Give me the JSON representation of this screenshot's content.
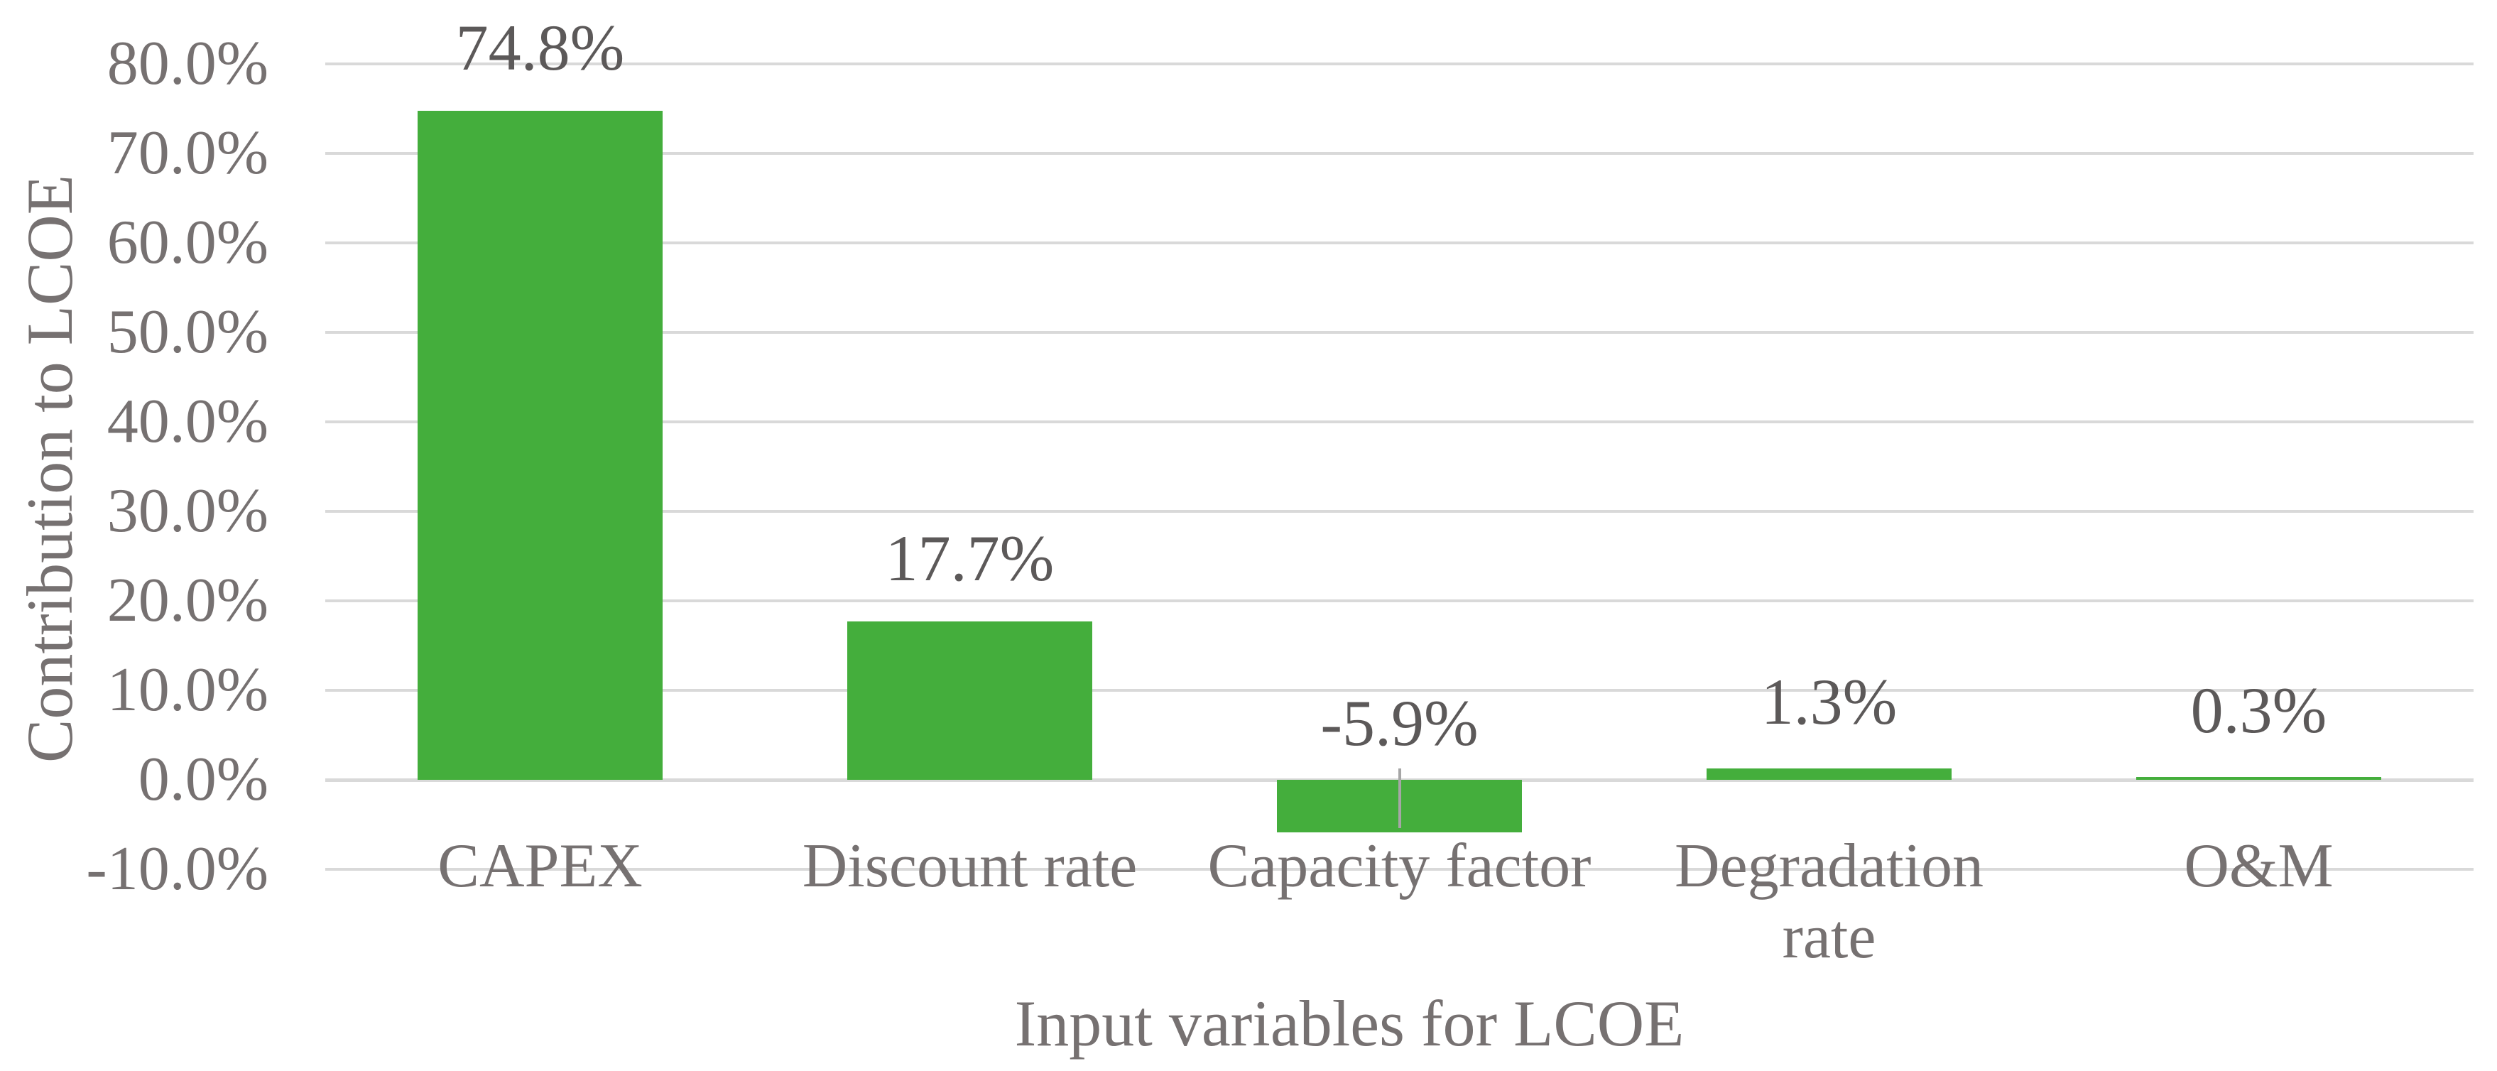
{
  "figure": {
    "background_color": "#FFFFFF",
    "bar_color": "#44AE3C",
    "gridline_color": "#D9D9D9",
    "zero_line_color": "#D9D9D9",
    "axis_text_color": "#767171",
    "data_label_color": "#5C5959",
    "leader_line_color": "#A6A6A6"
  },
  "chart_data": {
    "type": "bar",
    "title": "",
    "xlabel": "Input variables for LCOE",
    "ylabel": "Contribution to LCOE",
    "categories": [
      "CAPEX",
      "Discount rate",
      "Capacity factor",
      "Degradation\nrate",
      "O&M"
    ],
    "values": [
      74.8,
      17.7,
      -5.9,
      1.3,
      0.3
    ],
    "data_labels": [
      "74.8%",
      "17.7%",
      "-5.9%",
      "1.3%",
      "0.3%"
    ],
    "y_tick_values": [
      80,
      70,
      60,
      50,
      40,
      30,
      20,
      10,
      0,
      -10
    ],
    "y_tick_labels": [
      "80.0%",
      "70.0%",
      "60.0%",
      "50.0%",
      "40.0%",
      "30.0%",
      "20.0%",
      "10.0%",
      "0.0%",
      "-10.0%"
    ],
    "ylim": [
      -10,
      80
    ],
    "grid": true,
    "legend": null,
    "leader_line_category": "Capacity factor"
  }
}
